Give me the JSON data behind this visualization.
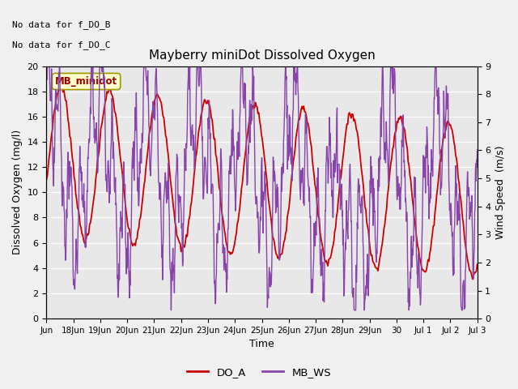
{
  "title": "Mayberry miniDot Dissolved Oxygen",
  "xlabel": "Time",
  "ylabel_left": "Dissolved Oxygen (mg/l)",
  "ylabel_right": "Wind Speed  (m/s)",
  "text_no_data": [
    "No data for f_DO_B",
    "No data for f_DO_C"
  ],
  "legend_box_label": "MB_minidot",
  "legend_entries": [
    "DO_A",
    "MB_WS"
  ],
  "legend_colors": [
    "#cc0000",
    "#8844aa"
  ],
  "ylim_left": [
    0,
    20
  ],
  "ylim_right": [
    0.0,
    9.0
  ],
  "yticks_left": [
    0,
    2,
    4,
    6,
    8,
    10,
    12,
    14,
    16,
    18,
    20
  ],
  "yticks_right": [
    0.0,
    1.0,
    2.0,
    3.0,
    4.0,
    5.0,
    6.0,
    7.0,
    8.0,
    9.0
  ],
  "background_color": "#f0f0f0",
  "axes_facecolor": "#e8e8e8",
  "grid_color": "#ffffff",
  "do_color": "#cc0000",
  "ws_color": "#8844aa",
  "do_lw": 1.3,
  "ws_lw": 1.0,
  "tick_positions": [
    0,
    1,
    2,
    3,
    4,
    5,
    6,
    7,
    8,
    9,
    10,
    11,
    12,
    13,
    14,
    15,
    16
  ],
  "tick_labels": [
    "Jun",
    "18Jun",
    "19Jun",
    "20Jun",
    "21Jun",
    "22Jun",
    "23Jun",
    "24Jun",
    "25Jun",
    "26Jun",
    "27Jun",
    "28Jun",
    "29Jun",
    "30",
    "Jul 1",
    "Jul 2",
    "Jul 3"
  ]
}
